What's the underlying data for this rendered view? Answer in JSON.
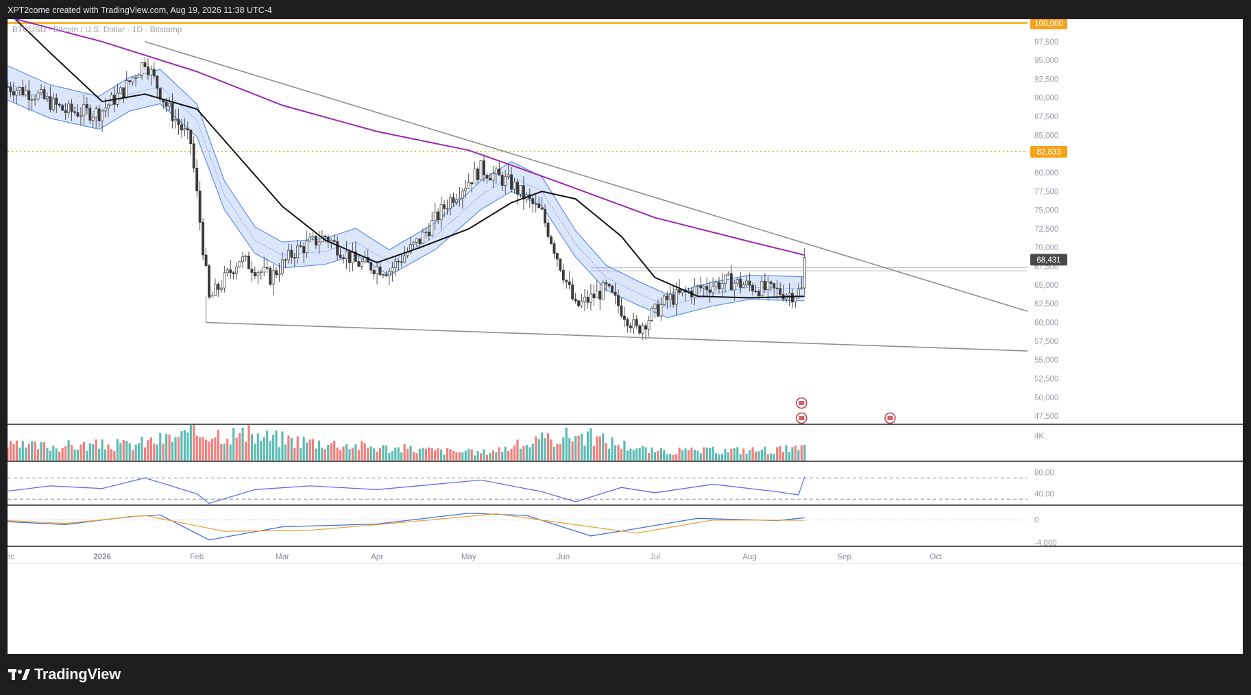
{
  "header": {
    "text": "XPT2come created with TradingView.com, Aug 19, 2026 11:38 UTC-4"
  },
  "symbol": {
    "title": "BTCUSD · Bitcoin / U.S. Dollar · 1D · Bitstamp"
  },
  "brand": {
    "name": "TradingView"
  },
  "colors": {
    "background": "#1e1e20",
    "up": "#26a69a",
    "down": "#ef5350",
    "candle": "#3a3a3a",
    "band": "#5b8def",
    "sma": "#111111",
    "sma200": "#9c27b0",
    "level100k": "#f7b731",
    "level82k": "#e0a800",
    "rsi": "#5b6ee1",
    "macd": "#3f6fd6",
    "signal": "#f0a13a"
  },
  "chart_data": {
    "type": "candlestick",
    "symbol": "BTCUSD",
    "interval": "1D",
    "exchange": "Bitstamp",
    "x_range": [
      "2025-12-01",
      "2026-10-31"
    ],
    "x_ticks": [
      {
        "label": "Dec",
        "date": "2025-12-01"
      },
      {
        "label": "2026",
        "date": "2026-01-01"
      },
      {
        "label": "Feb",
        "date": "2026-02-01"
      },
      {
        "label": "Mar",
        "date": "2026-03-01"
      },
      {
        "label": "Apr",
        "date": "2026-04-01"
      },
      {
        "label": "May",
        "date": "2026-05-01"
      },
      {
        "label": "Jun",
        "date": "2026-06-01"
      },
      {
        "label": "Jul",
        "date": "2026-07-01"
      },
      {
        "label": "Aug",
        "date": "2026-08-01"
      },
      {
        "label": "Sep",
        "date": "2026-09-01"
      },
      {
        "label": "Oct",
        "date": "2026-10-01"
      }
    ],
    "y_range": [
      46500,
      100500
    ],
    "y_ticks": [
      "47,500",
      "50,000",
      "52,500",
      "55,000",
      "57,500",
      "60,000",
      "62,500",
      "65,000",
      "67,500",
      "70,000",
      "72,500",
      "75,000",
      "77,500",
      "80,000",
      "82,500",
      "85,000",
      "87,500",
      "90,000",
      "92,500",
      "95,000",
      "97,500",
      "100,000"
    ],
    "price_labels": [
      {
        "label": "100,000",
        "value": 100000,
        "color": "#f7a21b"
      },
      {
        "label": "82,833",
        "value": 82833,
        "color": "#f7a21b"
      },
      {
        "label": "68,431",
        "value": 68431,
        "color": "#4a4a4a"
      }
    ],
    "close_path": [
      [
        "2025-12-01",
        91500
      ],
      [
        "2025-12-10",
        90500
      ],
      [
        "2025-12-20",
        88200
      ],
      [
        "2025-12-31",
        88000
      ],
      [
        "2026-01-08",
        91000
      ],
      [
        "2026-01-15",
        95000
      ],
      [
        "2026-01-22",
        89000
      ],
      [
        "2026-01-30",
        84000
      ],
      [
        "2026-02-05",
        63000
      ],
      [
        "2026-02-15",
        68500
      ],
      [
        "2026-02-25",
        66000
      ],
      [
        "2026-03-05",
        69500
      ],
      [
        "2026-03-15",
        71500
      ],
      [
        "2026-03-25",
        68000
      ],
      [
        "2026-04-05",
        67000
      ],
      [
        "2026-04-15",
        71000
      ],
      [
        "2026-04-25",
        76500
      ],
      [
        "2026-05-05",
        80500
      ],
      [
        "2026-05-15",
        78500
      ],
      [
        "2026-05-25",
        74500
      ],
      [
        "2026-06-05",
        62000
      ],
      [
        "2026-06-15",
        64500
      ],
      [
        "2026-06-25",
        59000
      ],
      [
        "2026-07-05",
        63000
      ],
      [
        "2026-07-15",
        64500
      ],
      [
        "2026-07-25",
        65500
      ],
      [
        "2026-08-05",
        64500
      ],
      [
        "2026-08-15",
        63800
      ],
      [
        "2026-08-18",
        64300
      ],
      [
        "2026-08-19",
        68431
      ]
    ],
    "series": [
      {
        "name": "SMA (black)",
        "points": [
          [
            "2025-12-01",
            101500
          ],
          [
            "2025-12-15",
            96000
          ],
          [
            "2026-01-01",
            89500
          ],
          [
            "2026-01-15",
            90500
          ],
          [
            "2026-02-01",
            88500
          ],
          [
            "2026-02-15",
            82000
          ],
          [
            "2026-03-01",
            75500
          ],
          [
            "2026-03-15",
            71000
          ],
          [
            "2026-04-01",
            68000
          ],
          [
            "2026-04-15",
            70000
          ],
          [
            "2026-05-01",
            72500
          ],
          [
            "2026-05-15",
            76000
          ],
          [
            "2026-05-25",
            77500
          ],
          [
            "2026-06-05",
            76500
          ],
          [
            "2026-06-20",
            71500
          ],
          [
            "2026-07-01",
            66000
          ],
          [
            "2026-07-15",
            63500
          ],
          [
            "2026-08-01",
            63300
          ],
          [
            "2026-08-19",
            63500
          ]
        ]
      },
      {
        "name": "SMA (purple)",
        "points": [
          [
            "2025-12-01",
            100800
          ],
          [
            "2026-01-01",
            97500
          ],
          [
            "2026-02-01",
            93500
          ],
          [
            "2026-03-01",
            89000
          ],
          [
            "2026-04-01",
            85500
          ],
          [
            "2026-05-01",
            83000
          ],
          [
            "2026-05-15",
            81000
          ],
          [
            "2026-06-01",
            78500
          ],
          [
            "2026-07-01",
            74000
          ],
          [
            "2026-08-01",
            70800
          ],
          [
            "2026-08-19",
            69000
          ]
        ]
      },
      {
        "name": "Band mid",
        "points": [
          [
            "2025-12-01",
            92000
          ],
          [
            "2025-12-15",
            89500
          ],
          [
            "2025-12-31",
            88000
          ],
          [
            "2026-01-10",
            90500
          ],
          [
            "2026-01-20",
            91500
          ],
          [
            "2026-02-01",
            87000
          ],
          [
            "2026-02-10",
            77000
          ],
          [
            "2026-02-20",
            71000
          ],
          [
            "2026-03-01",
            69000
          ],
          [
            "2026-03-15",
            69500
          ],
          [
            "2026-03-25",
            70800
          ],
          [
            "2026-04-05",
            68000
          ],
          [
            "2026-04-20",
            71500
          ],
          [
            "2026-05-05",
            77000
          ],
          [
            "2026-05-15",
            79500
          ],
          [
            "2026-05-25",
            77500
          ],
          [
            "2026-06-05",
            70500
          ],
          [
            "2026-06-15",
            66000
          ],
          [
            "2026-06-25",
            64000
          ],
          [
            "2026-07-05",
            62200
          ],
          [
            "2026-07-20",
            63800
          ],
          [
            "2026-08-01",
            64700
          ],
          [
            "2026-08-19",
            64500
          ]
        ]
      }
    ],
    "trendlines": [
      {
        "name": "upper trendline",
        "points": [
          [
            "2026-01-15",
            97500
          ],
          [
            "2026-10-31",
            61500
          ]
        ]
      },
      {
        "name": "lower trendline",
        "points": [
          [
            "2026-02-04",
            60000
          ],
          [
            "2026-10-31",
            56200
          ]
        ]
      }
    ],
    "horizontal_levels": [
      {
        "value": 100000,
        "style": "solid",
        "color": "#f7b731"
      },
      {
        "value": 82833,
        "style": "dotted",
        "color": "#e0a800"
      },
      {
        "value": 67300,
        "style": "thin",
        "from": "2026-06-10"
      },
      {
        "value": 66900,
        "style": "thin",
        "from": "2026-06-10"
      }
    ],
    "volume": {
      "axis_labels": [
        "4K"
      ],
      "max_value": 5000,
      "sample": [
        [
          "2025-12-10",
          2400,
          "up"
        ],
        [
          "2026-01-10",
          2600,
          "down"
        ],
        [
          "2026-02-05",
          4800,
          "down"
        ],
        [
          "2026-03-01",
          3600,
          "up"
        ],
        [
          "2026-04-01",
          2200,
          "up"
        ],
        [
          "2026-05-05",
          1300,
          "down"
        ],
        [
          "2026-06-05",
          4400,
          "down"
        ],
        [
          "2026-07-01",
          1500,
          "up"
        ],
        [
          "2026-08-19",
          1900,
          "up"
        ]
      ]
    },
    "rsi": {
      "axis_labels": [
        "80.00",
        "40.00"
      ],
      "y_range": [
        20,
        100
      ],
      "bands": [
        70,
        30
      ],
      "points": [
        [
          "2025-12-01",
          45
        ],
        [
          "2025-12-15",
          55
        ],
        [
          "2026-01-01",
          50
        ],
        [
          "2026-01-15",
          70
        ],
        [
          "2026-02-01",
          40
        ],
        [
          "2026-02-05",
          22
        ],
        [
          "2026-02-20",
          48
        ],
        [
          "2026-03-10",
          55
        ],
        [
          "2026-04-01",
          48
        ],
        [
          "2026-04-20",
          58
        ],
        [
          "2026-05-05",
          66
        ],
        [
          "2026-05-25",
          44
        ],
        [
          "2026-06-05",
          25
        ],
        [
          "2026-06-20",
          52
        ],
        [
          "2026-07-01",
          42
        ],
        [
          "2026-07-20",
          58
        ],
        [
          "2026-08-10",
          44
        ],
        [
          "2026-08-17",
          38
        ],
        [
          "2026-08-19",
          72
        ]
      ]
    },
    "macd": {
      "axis_labels": [
        "0",
        "-4,000"
      ],
      "y_range": [
        -4500,
        2500
      ],
      "series": [
        {
          "name": "MACD",
          "points": [
            [
              "2025-12-01",
              -300
            ],
            [
              "2025-12-20",
              -800
            ],
            [
              "2026-01-10",
              600
            ],
            [
              "2026-01-20",
              900
            ],
            [
              "2026-02-05",
              -3500
            ],
            [
              "2026-03-01",
              -1200
            ],
            [
              "2026-04-01",
              -700
            ],
            [
              "2026-05-01",
              1200
            ],
            [
              "2026-05-20",
              800
            ],
            [
              "2026-06-10",
              -2800
            ],
            [
              "2026-06-25",
              -1500
            ],
            [
              "2026-07-15",
              300
            ],
            [
              "2026-08-10",
              -100
            ],
            [
              "2026-08-19",
              400
            ]
          ]
        },
        {
          "name": "Signal",
          "points": [
            [
              "2025-12-01",
              -100
            ],
            [
              "2025-12-20",
              -600
            ],
            [
              "2026-01-15",
              800
            ],
            [
              "2026-02-10",
              -2000
            ],
            [
              "2026-03-10",
              -1800
            ],
            [
              "2026-04-10",
              -400
            ],
            [
              "2026-05-10",
              1100
            ],
            [
              "2026-06-10",
              -1200
            ],
            [
              "2026-06-25",
              -2300
            ],
            [
              "2026-07-20",
              0
            ],
            [
              "2026-08-19",
              -50
            ]
          ]
        }
      ]
    }
  }
}
